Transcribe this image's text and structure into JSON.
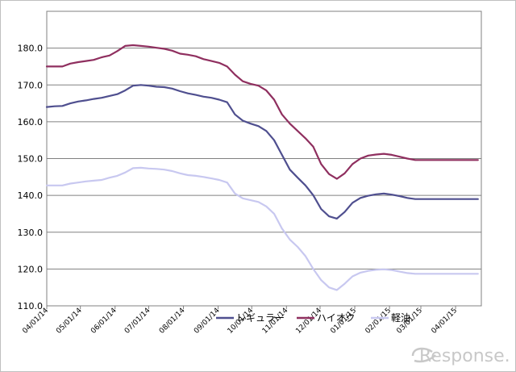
{
  "chart_data": {
    "type": "line",
    "title": "",
    "xlabel": "",
    "ylabel": "",
    "ylim": [
      110,
      190
    ],
    "yticks": [
      "110.0",
      "120.0",
      "130.0",
      "140.0",
      "150.0",
      "160.0",
      "170.0",
      "180.0"
    ],
    "xticks": [
      "04/01/14",
      "05/01/14",
      "06/01/14",
      "07/01/14",
      "08/01/14",
      "09/01/14",
      "10/01/14",
      "11/01/14",
      "12/01/14",
      "01/01/15",
      "02/01/15",
      "03/01/15",
      "04/01/15"
    ],
    "grid": true,
    "legend": "bottom",
    "series": [
      {
        "name": "レギュラー",
        "color": "#4f4f8f",
        "x": [
          "2014-04-01",
          "2014-04-08",
          "2014-04-15",
          "2014-04-22",
          "2014-04-29",
          "2014-05-06",
          "2014-05-13",
          "2014-05-20",
          "2014-05-27",
          "2014-06-03",
          "2014-06-10",
          "2014-06-17",
          "2014-06-24",
          "2014-07-01",
          "2014-07-08",
          "2014-07-15",
          "2014-07-22",
          "2014-07-29",
          "2014-08-05",
          "2014-08-12",
          "2014-08-19",
          "2014-08-26",
          "2014-09-02",
          "2014-09-09",
          "2014-09-16",
          "2014-09-23",
          "2014-09-30",
          "2014-10-07",
          "2014-10-14",
          "2014-10-21",
          "2014-10-28",
          "2014-11-04",
          "2014-11-11",
          "2014-11-18",
          "2014-11-25",
          "2014-12-02",
          "2014-12-09",
          "2014-12-16",
          "2014-12-23",
          "2014-12-30",
          "2015-01-06",
          "2015-01-13",
          "2015-01-20",
          "2015-01-27",
          "2015-02-03",
          "2015-02-10",
          "2015-02-17",
          "2015-02-24",
          "2015-03-03",
          "2015-03-10",
          "2015-03-17",
          "2015-03-24",
          "2015-03-31",
          "2015-04-07",
          "2015-04-14",
          "2015-04-21"
        ],
        "values": [
          164.0,
          164.2,
          164.3,
          165.0,
          165.5,
          165.8,
          166.2,
          166.5,
          167.0,
          167.5,
          168.5,
          169.8,
          170.0,
          169.8,
          169.5,
          169.4,
          169.0,
          168.3,
          167.7,
          167.3,
          166.8,
          166.5,
          166.0,
          165.3,
          162.0,
          160.3,
          159.5,
          158.8,
          157.5,
          155.0,
          151.0,
          147.0,
          144.8,
          142.7,
          140.0,
          136.3,
          134.3,
          133.7,
          135.5,
          138.0,
          139.3,
          139.9,
          140.3,
          140.5,
          140.2,
          139.8,
          139.3,
          139.0,
          139.0,
          139.0,
          139.0,
          139.0,
          139.0,
          139.0,
          139.0,
          139.0
        ]
      },
      {
        "name": "ハイオク",
        "color": "#8f2f5f",
        "x": [
          "2014-04-01",
          "2014-04-08",
          "2014-04-15",
          "2014-04-22",
          "2014-04-29",
          "2014-05-06",
          "2014-05-13",
          "2014-05-20",
          "2014-05-27",
          "2014-06-03",
          "2014-06-10",
          "2014-06-17",
          "2014-06-24",
          "2014-07-01",
          "2014-07-08",
          "2014-07-15",
          "2014-07-22",
          "2014-07-29",
          "2014-08-05",
          "2014-08-12",
          "2014-08-19",
          "2014-08-26",
          "2014-09-02",
          "2014-09-09",
          "2014-09-16",
          "2014-09-23",
          "2014-09-30",
          "2014-10-07",
          "2014-10-14",
          "2014-10-21",
          "2014-10-28",
          "2014-11-04",
          "2014-11-11",
          "2014-11-18",
          "2014-11-25",
          "2014-12-02",
          "2014-12-09",
          "2014-12-16",
          "2014-12-23",
          "2014-12-30",
          "2015-01-06",
          "2015-01-13",
          "2015-01-20",
          "2015-01-27",
          "2015-02-03",
          "2015-02-10",
          "2015-02-17",
          "2015-02-24",
          "2015-03-03",
          "2015-03-10",
          "2015-03-17",
          "2015-03-24",
          "2015-03-31",
          "2015-04-07",
          "2015-04-14",
          "2015-04-21"
        ],
        "values": [
          175.0,
          175.0,
          175.0,
          175.8,
          176.2,
          176.5,
          176.8,
          177.5,
          178.0,
          179.2,
          180.6,
          180.8,
          180.6,
          180.4,
          180.1,
          179.8,
          179.3,
          178.5,
          178.2,
          177.8,
          177.0,
          176.5,
          176.0,
          175.0,
          172.8,
          171.0,
          170.3,
          169.8,
          168.5,
          166.0,
          162.0,
          159.5,
          157.5,
          155.5,
          153.2,
          148.5,
          145.8,
          144.5,
          146.0,
          148.5,
          150.0,
          150.8,
          151.1,
          151.3,
          151.0,
          150.5,
          150.0,
          149.6,
          149.6,
          149.6,
          149.6,
          149.6,
          149.6,
          149.6,
          149.6,
          149.6
        ]
      },
      {
        "name": "軽油",
        "color": "#c8c8f0",
        "x": [
          "2014-04-01",
          "2014-04-08",
          "2014-04-15",
          "2014-04-22",
          "2014-04-29",
          "2014-05-06",
          "2014-05-13",
          "2014-05-20",
          "2014-05-27",
          "2014-06-03",
          "2014-06-10",
          "2014-06-17",
          "2014-06-24",
          "2014-07-01",
          "2014-07-08",
          "2014-07-15",
          "2014-07-22",
          "2014-07-29",
          "2014-08-05",
          "2014-08-12",
          "2014-08-19",
          "2014-08-26",
          "2014-09-02",
          "2014-09-09",
          "2014-09-16",
          "2014-09-23",
          "2014-09-30",
          "2014-10-07",
          "2014-10-14",
          "2014-10-21",
          "2014-10-28",
          "2014-11-04",
          "2014-11-11",
          "2014-11-18",
          "2014-11-25",
          "2014-12-02",
          "2014-12-09",
          "2014-12-16",
          "2014-12-23",
          "2014-12-30",
          "2015-01-06",
          "2015-01-13",
          "2015-01-20",
          "2015-01-27",
          "2015-02-03",
          "2015-02-10",
          "2015-02-17",
          "2015-02-24",
          "2015-03-03",
          "2015-03-10",
          "2015-03-17",
          "2015-03-24",
          "2015-03-31",
          "2015-04-07",
          "2015-04-14",
          "2015-04-21"
        ],
        "values": [
          142.7,
          142.7,
          142.7,
          143.2,
          143.5,
          143.8,
          144.0,
          144.2,
          144.8,
          145.3,
          146.2,
          147.4,
          147.5,
          147.3,
          147.2,
          147.0,
          146.6,
          146.0,
          145.5,
          145.3,
          145.0,
          144.6,
          144.2,
          143.5,
          140.5,
          139.2,
          138.7,
          138.2,
          137.0,
          135.0,
          131.0,
          128.0,
          126.0,
          123.5,
          120.0,
          117.0,
          115.0,
          114.3,
          116.0,
          118.0,
          119.0,
          119.5,
          119.8,
          119.9,
          119.7,
          119.3,
          118.9,
          118.7,
          118.7,
          118.7,
          118.7,
          118.7,
          118.7,
          118.7,
          118.7,
          118.7
        ]
      }
    ]
  },
  "watermark": {
    "text": "Response."
  }
}
